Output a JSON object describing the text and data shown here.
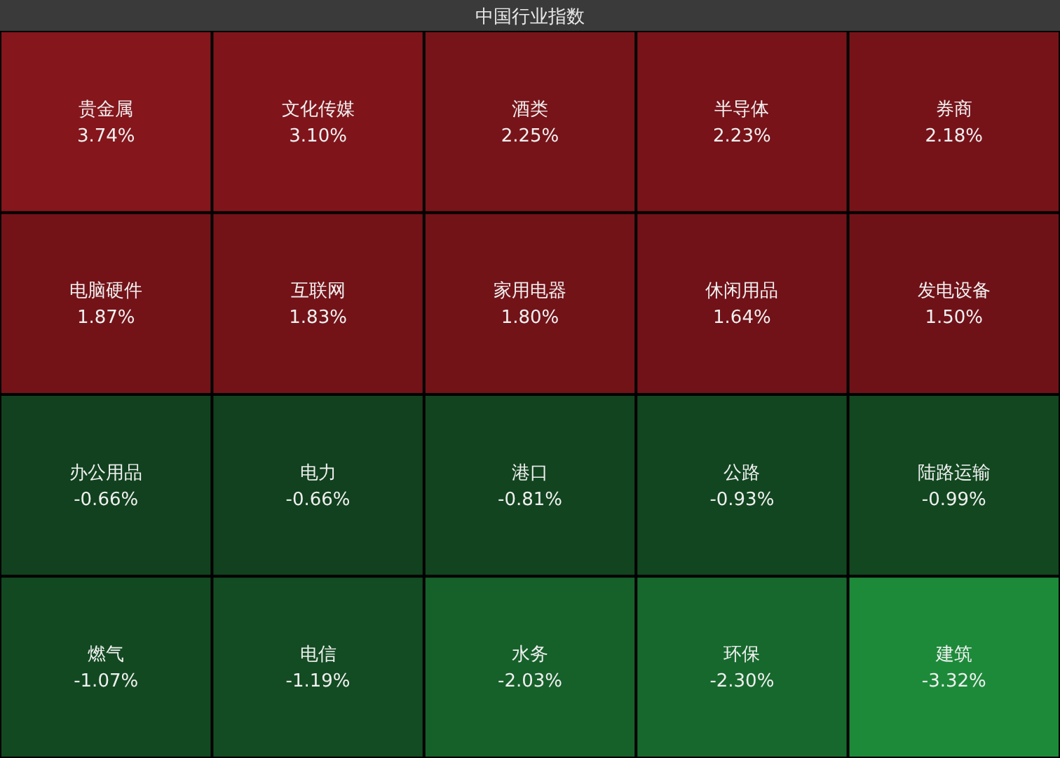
{
  "chart_data": {
    "type": "other",
    "title": "中国行业指数",
    "categories": [
      "贵金属",
      "文化传媒",
      "酒类",
      "半导体",
      "券商",
      "电脑硬件",
      "互联网",
      "家用电器",
      "休闲用品",
      "发电设备",
      "办公用品",
      "电力",
      "港口",
      "公路",
      "陆路运输",
      "燃气",
      "电信",
      "水务",
      "环保",
      "建筑"
    ],
    "values": [
      3.74,
      3.1,
      2.25,
      2.23,
      2.18,
      1.87,
      1.83,
      1.8,
      1.64,
      1.5,
      -0.66,
      -0.66,
      -0.81,
      -0.93,
      -0.99,
      -1.07,
      -1.19,
      -2.03,
      -2.3,
      -3.32
    ],
    "value_labels": [
      "3.74%",
      "3.10%",
      "2.25%",
      "2.23%",
      "2.18%",
      "1.87%",
      "1.83%",
      "1.80%",
      "1.64%",
      "1.50%",
      "-0.66%",
      "-0.66%",
      "-0.81%",
      "-0.93%",
      "-0.99%",
      "-1.07%",
      "-1.19%",
      "-2.03%",
      "-2.30%",
      "-3.32%"
    ]
  }
}
